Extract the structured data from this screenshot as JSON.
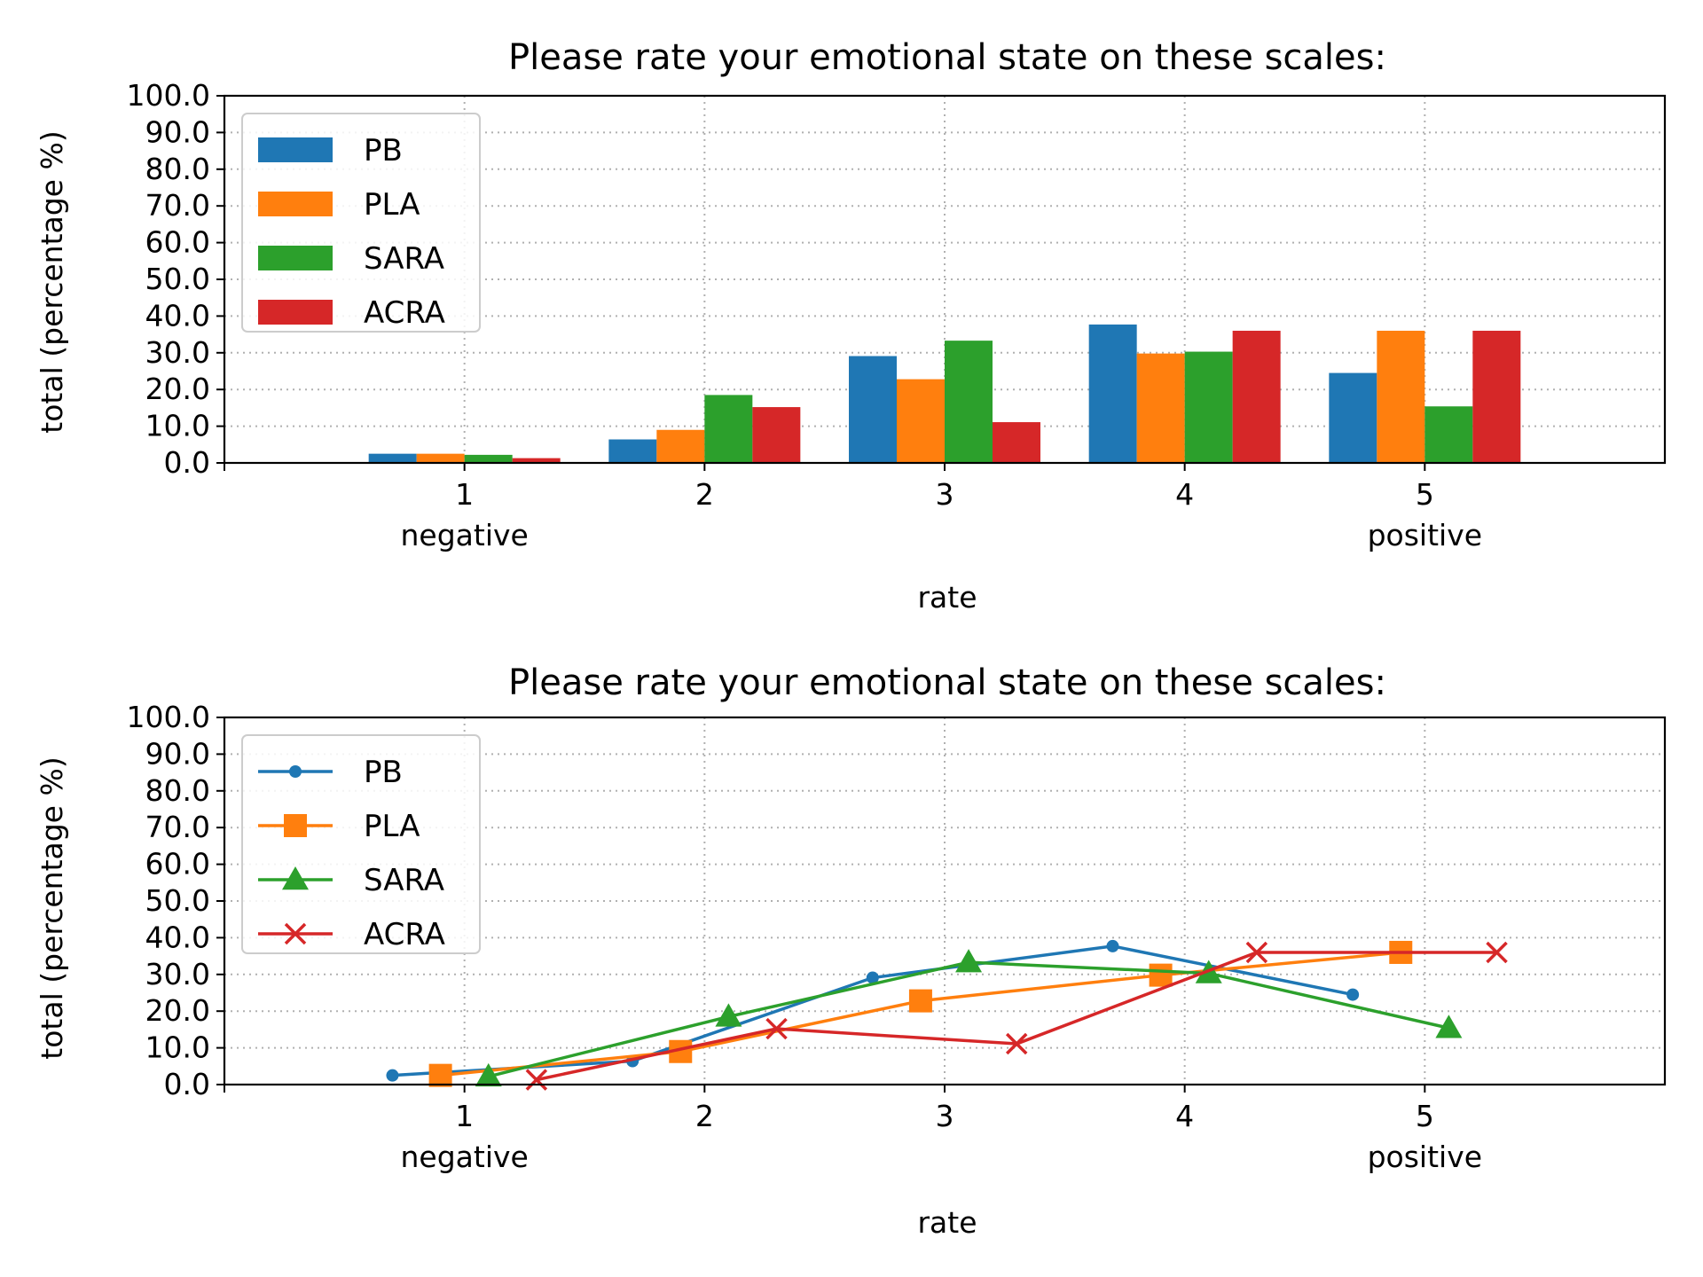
{
  "colors": {
    "PB": "#1f77b4",
    "PLA": "#ff7f0e",
    "SARA": "#2ca02c",
    "ACRA": "#d62728"
  },
  "chart_data": [
    {
      "type": "bar",
      "title": "Please rate your emotional state on these scales:",
      "xlabel": "rate",
      "ylabel": "total (percentage %)",
      "ylim": [
        0,
        100
      ],
      "yticks": [
        "0.0",
        "10.0",
        "20.0",
        "30.0",
        "40.0",
        "50.0",
        "60.0",
        "70.0",
        "80.0",
        "90.0",
        "100.0"
      ],
      "categories": [
        "1",
        "2",
        "3",
        "4",
        "5"
      ],
      "category_sublabels": [
        "negative",
        "",
        "",
        "",
        "positive"
      ],
      "grid": true,
      "legend_position": "upper-left",
      "series": [
        {
          "name": "PB",
          "marker": "bar",
          "values": [
            2.5,
            6.4,
            29.1,
            37.7,
            24.5
          ]
        },
        {
          "name": "PLA",
          "marker": "bar",
          "values": [
            2.5,
            9.0,
            22.8,
            29.8,
            36.0
          ]
        },
        {
          "name": "SARA",
          "marker": "bar",
          "values": [
            2.2,
            18.5,
            33.3,
            30.3,
            15.4
          ]
        },
        {
          "name": "ACRA",
          "marker": "bar",
          "values": [
            1.3,
            15.2,
            11.1,
            36.0,
            36.0
          ]
        }
      ]
    },
    {
      "type": "line",
      "title": "Please rate your emotional state on these scales:",
      "xlabel": "rate",
      "ylabel": "total (percentage %)",
      "ylim": [
        0,
        100
      ],
      "yticks": [
        "0.0",
        "10.0",
        "20.0",
        "30.0",
        "40.0",
        "50.0",
        "60.0",
        "70.0",
        "80.0",
        "90.0",
        "100.0"
      ],
      "categories": [
        "1",
        "2",
        "3",
        "4",
        "5"
      ],
      "category_sublabels": [
        "negative",
        "",
        "",
        "",
        "positive"
      ],
      "grid": true,
      "legend_position": "upper-left",
      "series": [
        {
          "name": "PB",
          "marker": "circle",
          "x": [
            0.7,
            1.7,
            2.7,
            3.7,
            4.7
          ],
          "values": [
            2.5,
            6.4,
            29.1,
            37.7,
            24.5
          ]
        },
        {
          "name": "PLA",
          "marker": "square",
          "x": [
            0.9,
            1.9,
            2.9,
            3.9,
            4.9
          ],
          "values": [
            2.5,
            9.0,
            22.8,
            29.8,
            36.0
          ]
        },
        {
          "name": "SARA",
          "marker": "triangle",
          "x": [
            1.1,
            2.1,
            3.1,
            4.1,
            5.1
          ],
          "values": [
            2.2,
            18.5,
            33.3,
            30.3,
            15.4
          ]
        },
        {
          "name": "ACRA",
          "marker": "x",
          "x": [
            1.3,
            2.3,
            3.3,
            4.3,
            5.3
          ],
          "values": [
            1.3,
            15.2,
            11.1,
            36.0,
            36.0
          ]
        }
      ]
    }
  ]
}
